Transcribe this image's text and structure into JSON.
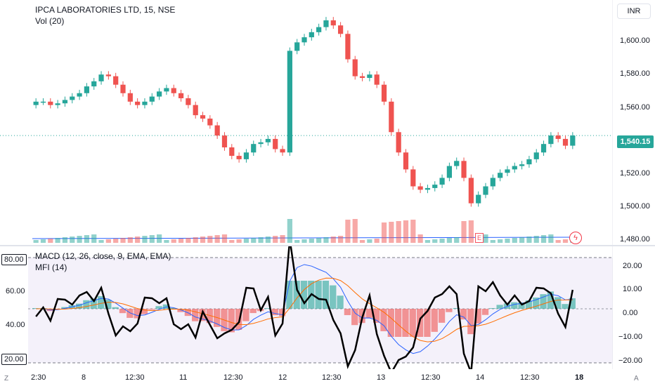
{
  "header": {
    "symbol_title": "IPCA LABORATORIES LTD, 15, NSE",
    "volume_label": "Vol (20)",
    "currency": "INR"
  },
  "indicators": {
    "macd_label": "MACD (12, 26, close, 9, EMA, EMA)",
    "mfi_label": "MFI (14)"
  },
  "price_axis": {
    "ticks": [
      "1,600.00",
      "1,580.00",
      "1,560.00",
      "1,520.00",
      "1,500.00",
      "1,480.00"
    ],
    "last_price": "1,540.15"
  },
  "macd_axis": {
    "ticks": [
      "20.00",
      "10.00",
      "0.00",
      "−10.00",
      "−20.00"
    ]
  },
  "mfi_axis": {
    "ticks": [
      "80.00",
      "60.00",
      "40.00",
      "20.00"
    ]
  },
  "time_axis": {
    "labels": [
      "2:30",
      "8",
      "12:30",
      "11",
      "12:30",
      "12",
      "12:30",
      "13",
      "12:30",
      "14",
      "12:30",
      "18"
    ]
  },
  "markers": {
    "earnings": "E",
    "flash": "ϟ"
  },
  "corner": {
    "left": "Z",
    "right": "A"
  },
  "colors": {
    "up": "#26a69a",
    "down": "#ef5350",
    "mfi_bg": "#ede7f6",
    "macd_line": "#2962ff",
    "signal_line": "#ff6d00"
  },
  "chart_data": {
    "type": "candlestick",
    "title": "IPCA LABORATORIES LTD, 15, NSE",
    "ylim": [
      1475,
      1620
    ],
    "candles_close": [
      1560,
      1560,
      1558,
      1559,
      1561,
      1563,
      1565,
      1569,
      1572,
      1576,
      1575,
      1570,
      1565,
      1560,
      1558,
      1560,
      1563,
      1566,
      1568,
      1565,
      1562,
      1558,
      1552,
      1550,
      1546,
      1540,
      1533,
      1528,
      1526,
      1530,
      1535,
      1536,
      1538,
      1532,
      1530,
      1590,
      1595,
      1598,
      1601,
      1604,
      1608,
      1605,
      1600,
      1585,
      1575,
      1574,
      1576,
      1570,
      1560,
      1542,
      1530,
      1520,
      1510,
      1508,
      1509,
      1511,
      1515,
      1522,
      1525,
      1515,
      1500,
      1505,
      1510,
      1515,
      1518,
      1520,
      1522,
      1523,
      1526,
      1530,
      1535,
      1540,
      1538,
      1534,
      1540
    ]
  }
}
